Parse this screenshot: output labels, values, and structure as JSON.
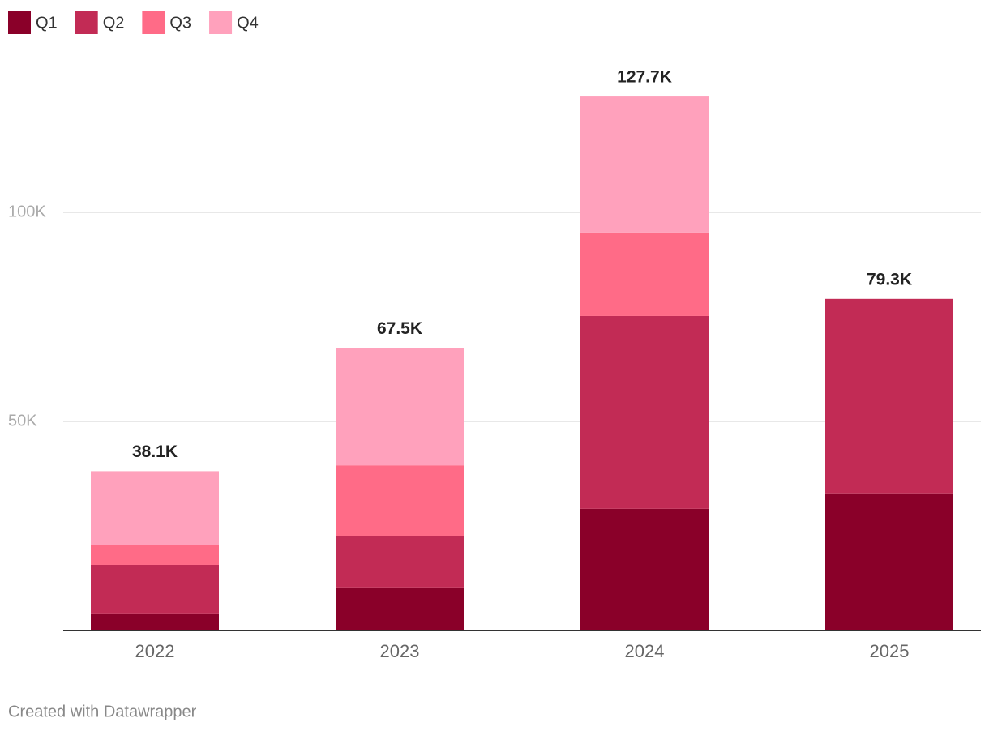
{
  "chart_data": {
    "type": "stacked_bar",
    "categories": [
      "2022",
      "2023",
      "2024",
      "2025"
    ],
    "series": [
      {
        "name": "Q1",
        "color": "#8a0029",
        "values": [
          3900,
          10300,
          29100,
          32800
        ]
      },
      {
        "name": "Q2",
        "color": "#c22b55",
        "values": [
          11800,
          12200,
          46100,
          46500
        ]
      },
      {
        "name": "Q3",
        "color": "#ff6b87",
        "values": [
          4800,
          17000,
          20000,
          null
        ]
      },
      {
        "name": "Q4",
        "color": "#ffa1bc",
        "values": [
          17600,
          28000,
          32500,
          null
        ]
      }
    ],
    "totals": [
      38100,
      67500,
      127700,
      79300
    ],
    "total_labels": [
      "38.1K",
      "67.5K",
      "127.7K",
      "79.3K"
    ],
    "ylim": [
      0,
      130000
    ],
    "yticks": [
      {
        "value": 50000,
        "label": "50K"
      },
      {
        "value": 100000,
        "label": "100K"
      }
    ],
    "grid": true,
    "legend": "top-left",
    "footer": "Created with Datawrapper"
  }
}
